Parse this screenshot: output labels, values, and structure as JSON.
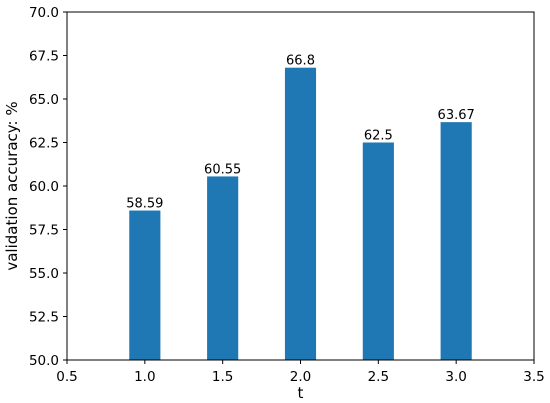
{
  "chart_data": {
    "type": "bar",
    "x": [
      1.0,
      1.5,
      2.0,
      2.5,
      3.0
    ],
    "values": [
      58.59,
      60.55,
      66.8,
      62.5,
      63.67
    ],
    "data_labels": [
      "58.59",
      "60.55",
      "66.8",
      "62.5",
      "63.67"
    ],
    "bar_width": 0.2,
    "xlabel": "t",
    "ylabel": "validation accuracy: %",
    "xlim": [
      0.5,
      3.5
    ],
    "ylim": [
      50.0,
      70.0
    ],
    "x_ticks": [
      0.5,
      1.0,
      1.5,
      2.0,
      2.5,
      3.0,
      3.5
    ],
    "x_tick_labels": [
      "0.5",
      "1.0",
      "1.5",
      "2.0",
      "2.5",
      "3.0",
      "3.5"
    ],
    "y_ticks": [
      50.0,
      52.5,
      55.0,
      57.5,
      60.0,
      62.5,
      65.0,
      67.5,
      70.0
    ],
    "y_tick_labels": [
      "50.0",
      "52.5",
      "55.0",
      "57.5",
      "60.0",
      "62.5",
      "65.0",
      "67.5",
      "70.0"
    ],
    "grid": false,
    "bar_color": "#1f77b4"
  }
}
